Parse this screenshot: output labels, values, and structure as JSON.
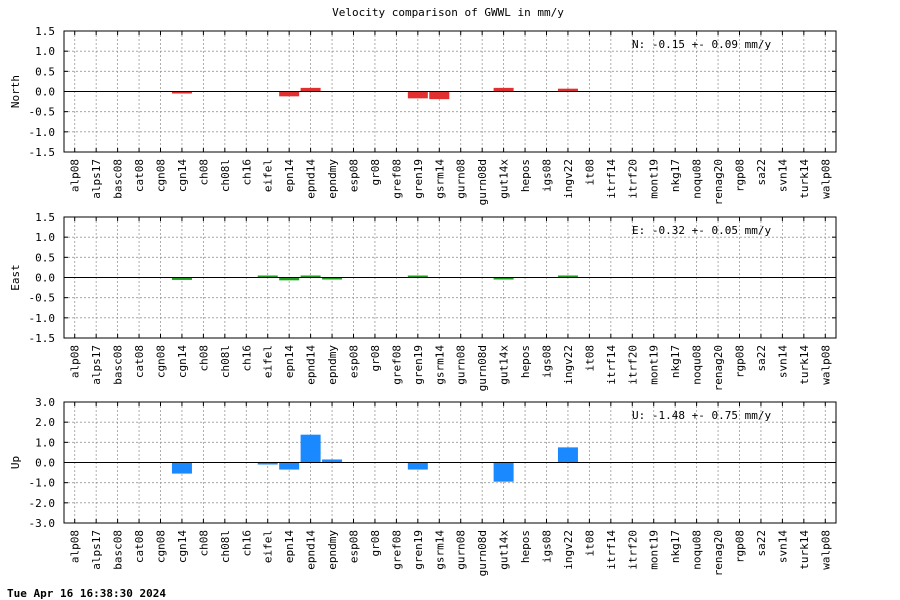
{
  "chart_data": {
    "type": "bar",
    "title": "Velocity comparison of GWWL in mm/y",
    "categories": [
      "alp08",
      "alps17",
      "basc08",
      "cat08",
      "cgn08",
      "cgn14",
      "ch08",
      "ch08l",
      "ch16",
      "eifel",
      "epn14",
      "epnd14",
      "epndmy",
      "esp08",
      "gr08",
      "gref08",
      "gren19",
      "gsrm14",
      "gurn08",
      "gurn08d",
      "gut14x",
      "hepos",
      "igs08",
      "ingv22",
      "it08",
      "itrf14",
      "itrf20",
      "mont19",
      "nkg17",
      "noqu08",
      "renag20",
      "rgp08",
      "sa22",
      "svn14",
      "turk14",
      "walp08"
    ],
    "panels": [
      {
        "name": "north",
        "ylabel": "North",
        "ylim": [
          -1.5,
          1.5
        ],
        "yticks": [
          "1.5",
          "1.0",
          "0.5",
          "0.0",
          "-0.5",
          "-1.0",
          "-1.5"
        ],
        "ytick_values": [
          1.5,
          1.0,
          0.5,
          0.0,
          -0.5,
          -1.0,
          -1.5
        ],
        "color": "#e03030",
        "annotation": "N:  -0.15 +-  0.09 mm/y",
        "values": [
          0,
          0,
          0,
          0,
          0,
          -0.03,
          0,
          0,
          0,
          0,
          -0.12,
          0.09,
          0,
          0,
          0,
          0,
          -0.17,
          -0.19,
          0,
          0,
          0.09,
          0,
          0,
          0.07,
          0,
          0,
          0,
          0,
          0,
          0,
          0,
          0,
          0,
          0,
          0,
          0
        ]
      },
      {
        "name": "east",
        "ylabel": "East",
        "ylim": [
          -1.5,
          1.5
        ],
        "yticks": [
          "1.5",
          "1.0",
          "0.5",
          "0.0",
          "-0.5",
          "-1.0",
          "-1.5"
        ],
        "ytick_values": [
          1.5,
          1.0,
          0.5,
          0.0,
          -0.5,
          -1.0,
          -1.5
        ],
        "color": "#20a020",
        "annotation": "E:  -0.32 +-  0.05 mm/y",
        "values": [
          0,
          0,
          0,
          0,
          0,
          -0.06,
          0,
          0,
          0,
          0.02,
          -0.07,
          0.05,
          -0.05,
          0,
          0,
          0,
          0.02,
          0,
          0,
          0,
          -0.05,
          0,
          0,
          0.05,
          0,
          0,
          0,
          0,
          0,
          0,
          0,
          0,
          0,
          0,
          0,
          0
        ]
      },
      {
        "name": "up",
        "ylabel": "Up",
        "ylim": [
          -3.0,
          3.0
        ],
        "yticks": [
          "3.0",
          "2.0",
          "1.0",
          "0.0",
          "-1.0",
          "-2.0",
          "-3.0"
        ],
        "ytick_values": [
          3.0,
          2.0,
          1.0,
          0.0,
          -1.0,
          -2.0,
          -3.0
        ],
        "color": "#1a88ff",
        "annotation": "U:  -1.48 +-  0.75 mm/y",
        "values": [
          0,
          0,
          0,
          0,
          0,
          -0.55,
          0,
          0,
          0,
          -0.08,
          -0.35,
          1.38,
          0.15,
          0,
          0,
          0,
          -0.35,
          0,
          0,
          0,
          -0.95,
          0,
          0,
          0.75,
          0,
          0,
          0,
          0,
          0,
          0,
          0,
          0,
          0,
          0,
          0,
          0
        ]
      }
    ]
  },
  "footer": {
    "timestamp": "Tue Apr 16 16:38:30 2024"
  }
}
